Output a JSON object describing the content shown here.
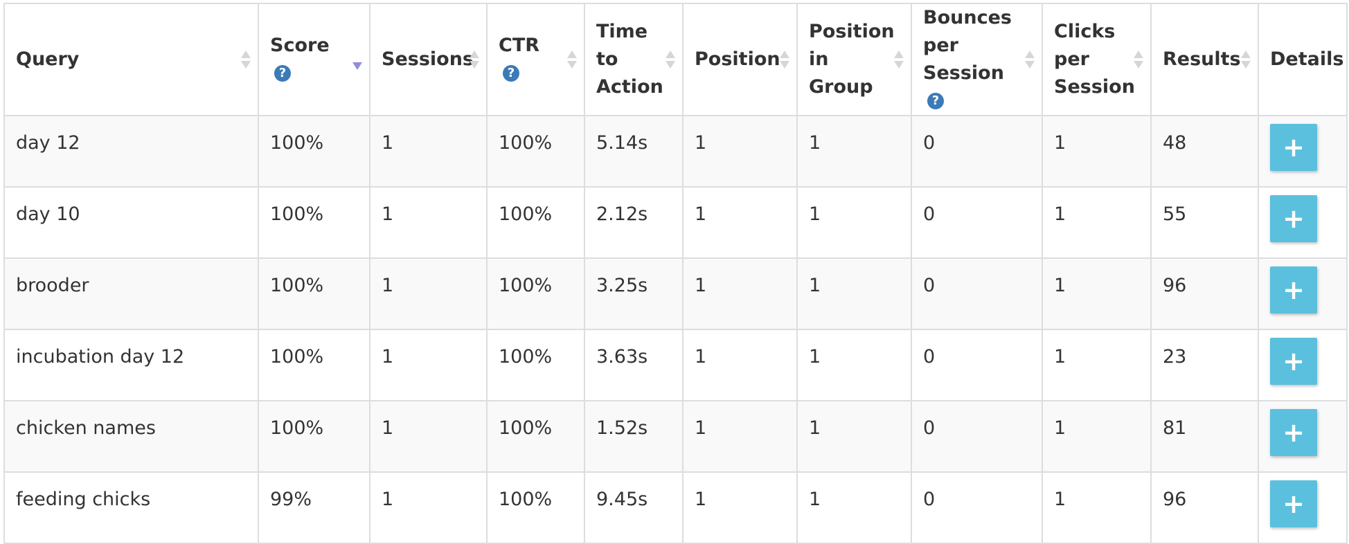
{
  "table": {
    "headers": {
      "query": "Query",
      "score": "Score",
      "sessions": "Sessions",
      "ctr": "CTR",
      "time_to_action": "Time to Action",
      "position": "Position",
      "position_in_group": "Position in Group",
      "bounces_per_session": "Bounces per Session",
      "clicks_per_session": "Clicks per Session",
      "results": "Results",
      "details": "Details"
    },
    "help_glyph": "?",
    "sorted_column": "score",
    "sort_direction": "descending",
    "detail_button_label": "+",
    "rows": [
      {
        "query": "day 12",
        "score": "100%",
        "sessions": "1",
        "ctr": "100%",
        "time_to_action": "5.14s",
        "position": "1",
        "position_in_group": "1",
        "bounces_per_session": "0",
        "clicks_per_session": "1",
        "results": "48"
      },
      {
        "query": "day 10",
        "score": "100%",
        "sessions": "1",
        "ctr": "100%",
        "time_to_action": "2.12s",
        "position": "1",
        "position_in_group": "1",
        "bounces_per_session": "0",
        "clicks_per_session": "1",
        "results": "55"
      },
      {
        "query": "brooder",
        "score": "100%",
        "sessions": "1",
        "ctr": "100%",
        "time_to_action": "3.25s",
        "position": "1",
        "position_in_group": "1",
        "bounces_per_session": "0",
        "clicks_per_session": "1",
        "results": "96"
      },
      {
        "query": "incubation day 12",
        "score": "100%",
        "sessions": "1",
        "ctr": "100%",
        "time_to_action": "3.63s",
        "position": "1",
        "position_in_group": "1",
        "bounces_per_session": "0",
        "clicks_per_session": "1",
        "results": "23"
      },
      {
        "query": "chicken names",
        "score": "100%",
        "sessions": "1",
        "ctr": "100%",
        "time_to_action": "1.52s",
        "position": "1",
        "position_in_group": "1",
        "bounces_per_session": "0",
        "clicks_per_session": "1",
        "results": "81"
      },
      {
        "query": "feeding chicks",
        "score": "99%",
        "sessions": "1",
        "ctr": "100%",
        "time_to_action": "9.45s",
        "position": "1",
        "position_in_group": "1",
        "bounces_per_session": "0",
        "clicks_per_session": "1",
        "results": "96"
      }
    ]
  },
  "colors": {
    "detail_button": "#5bc0de",
    "help_icon": "#3c7ab8",
    "sort_active": "#8f8fd9",
    "sort_inactive": "#d6d6d6",
    "row_stripe": "#f9f9f9",
    "border": "#dddddd"
  },
  "icons": {
    "help": "question-circle-icon",
    "sort": "sort-arrows-icon",
    "sort_desc": "sort-desc-icon",
    "detail": "plus-icon"
  }
}
